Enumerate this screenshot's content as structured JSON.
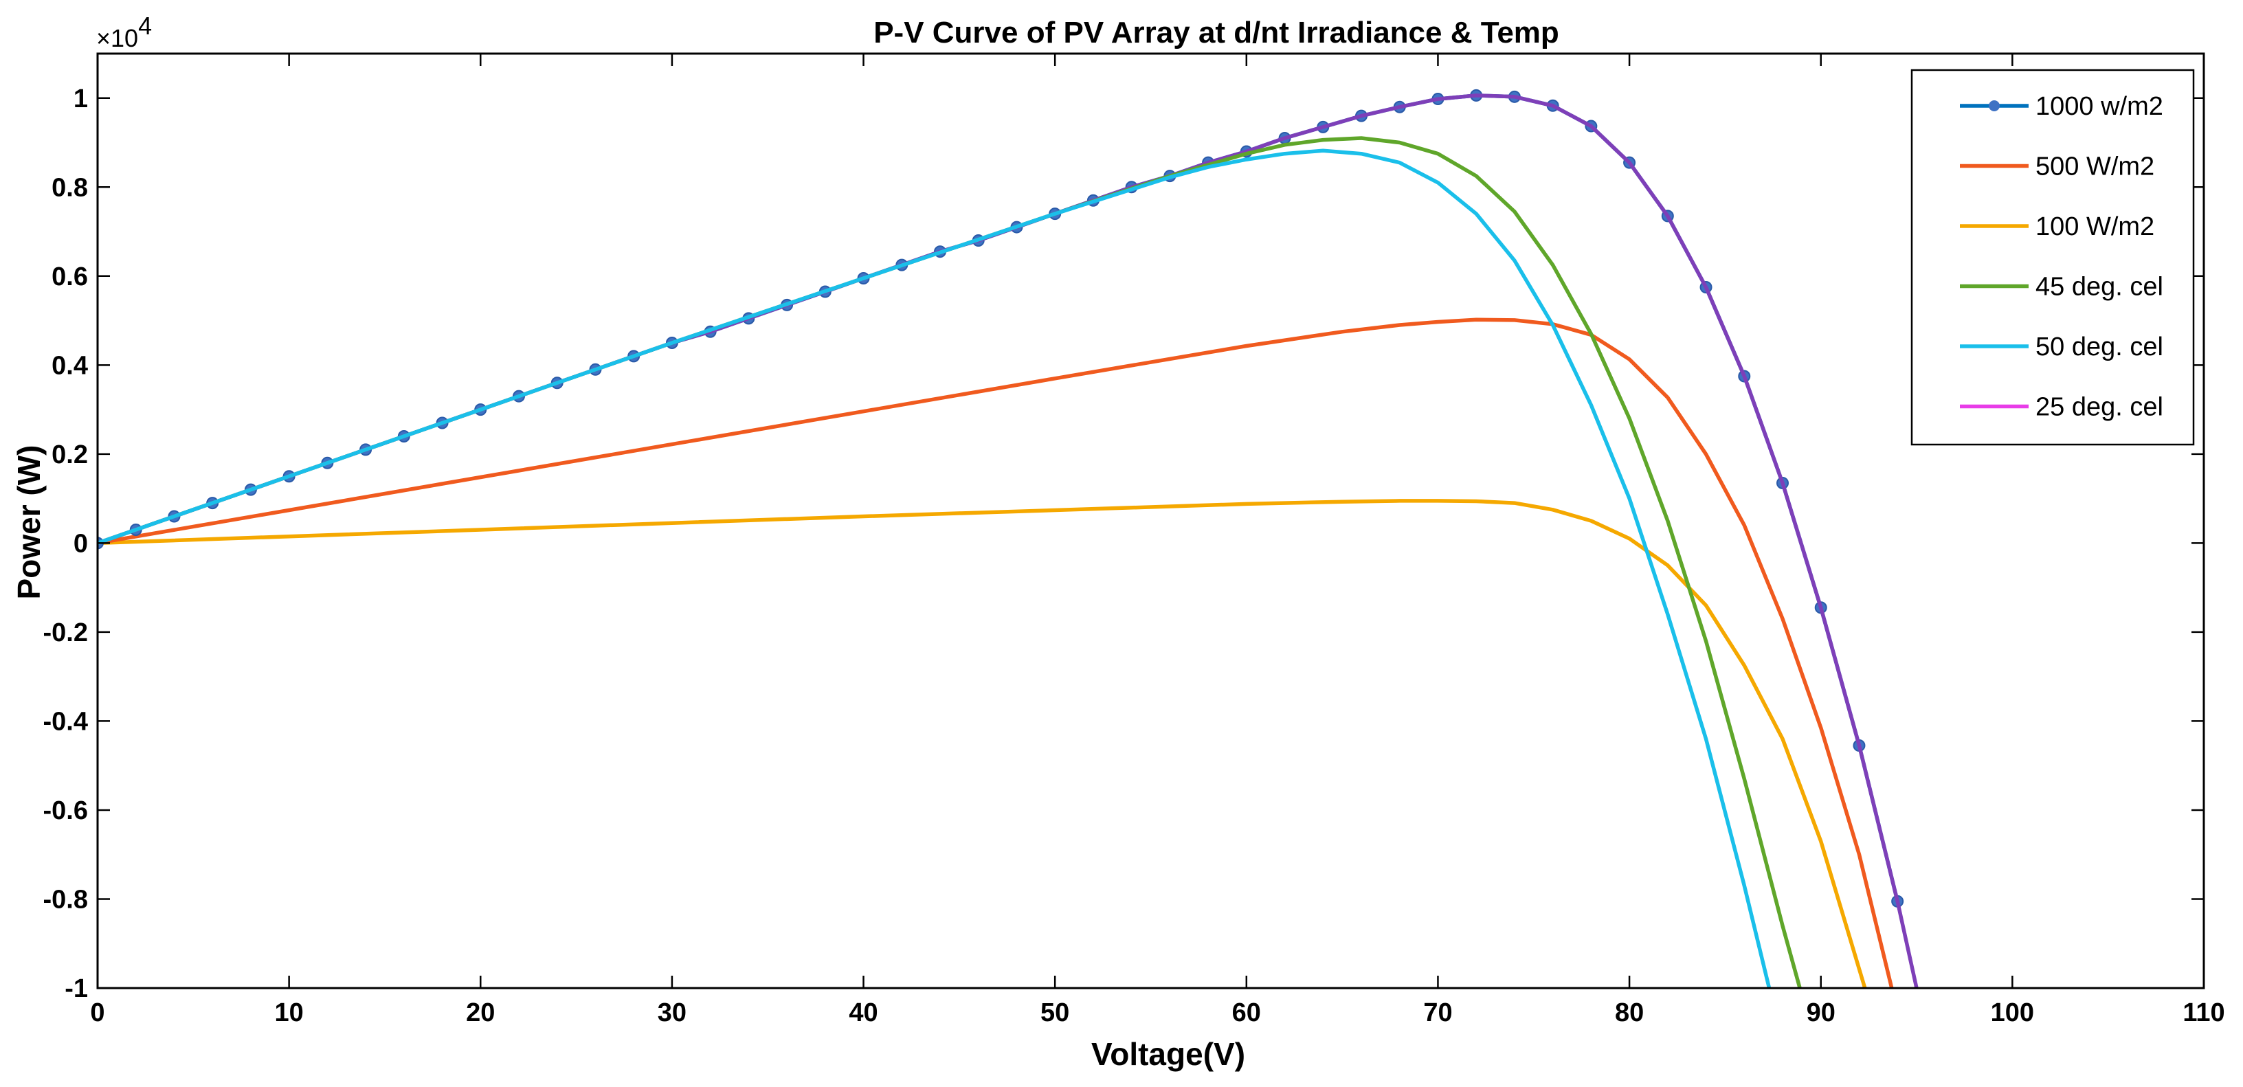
{
  "chart_data": {
    "type": "line",
    "title": "P-V Curve of PV Array at d/nt Irradiance & Temp",
    "xlabel": "Voltage(V)",
    "ylabel": "Power (W)",
    "y_exponent_base": "×10",
    "y_exponent_power": "4",
    "xlim": [
      0,
      110
    ],
    "ylim": [
      -1,
      1.1
    ],
    "x_ticks": [
      0,
      10,
      20,
      30,
      40,
      50,
      60,
      70,
      80,
      90,
      100,
      110
    ],
    "x_tick_labels": [
      "0",
      "10",
      "20",
      "30",
      "40",
      "50",
      "60",
      "70",
      "80",
      "90",
      "100",
      "110"
    ],
    "y_ticks": [
      1,
      0.8,
      0.6,
      0.4,
      0.2,
      0,
      -0.2,
      -0.4,
      -0.6,
      -0.8,
      -1
    ],
    "y_tick_labels": [
      "1",
      "0.8",
      "0.6",
      "0.4",
      "0.2",
      "0",
      "-0.2",
      "-0.4",
      "-0.6",
      "-0.8",
      "-1"
    ],
    "grid": false,
    "legend_position": "top-right",
    "series": [
      {
        "name": "1000 w/m2",
        "color": "#0072BD",
        "marker": "circle",
        "x": [
          0,
          2,
          4,
          6,
          8,
          10,
          12,
          14,
          16,
          18,
          20,
          22,
          24,
          26,
          28,
          30,
          32,
          34,
          36,
          38,
          40,
          42,
          44,
          46,
          48,
          50,
          52,
          54,
          56,
          58,
          60,
          62,
          64,
          66,
          68,
          70,
          72,
          74,
          76,
          78,
          80,
          82,
          84,
          86,
          88,
          90,
          92,
          94
        ],
        "y": [
          0,
          0.03,
          0.06,
          0.09,
          0.12,
          0.15,
          0.18,
          0.21,
          0.24,
          0.27,
          0.3,
          0.33,
          0.36,
          0.39,
          0.42,
          0.45,
          0.475,
          0.505,
          0.535,
          0.565,
          0.595,
          0.625,
          0.655,
          0.68,
          0.71,
          0.74,
          0.77,
          0.8,
          0.825,
          0.855,
          0.88,
          0.91,
          0.935,
          0.96,
          0.98,
          0.998,
          1.006,
          1.003,
          0.983,
          0.937,
          0.855,
          0.735,
          0.575,
          0.375,
          0.135,
          -0.145,
          -0.455,
          -0.805
        ]
      },
      {
        "name": "500 W/m2",
        "color": "#F05A1E",
        "marker": "none",
        "x": [
          0,
          10,
          20,
          30,
          40,
          50,
          60,
          65,
          68,
          70,
          72,
          74,
          76,
          78,
          80,
          82,
          84,
          86,
          88,
          90,
          92,
          93.7
        ],
        "y": [
          0,
          0.074,
          0.148,
          0.222,
          0.296,
          0.37,
          0.443,
          0.475,
          0.49,
          0.497,
          0.502,
          0.501,
          0.492,
          0.468,
          0.413,
          0.327,
          0.2,
          0.04,
          -0.17,
          -0.415,
          -0.7,
          -1.0
        ]
      },
      {
        "name": "100 W/m2",
        "color": "#F5A800",
        "marker": "none",
        "x": [
          0,
          10,
          20,
          30,
          40,
          50,
          60,
          65,
          68,
          70,
          72,
          74,
          76,
          78,
          80,
          82,
          84,
          86,
          88,
          90,
          92.3
        ],
        "y": [
          0,
          0.015,
          0.03,
          0.045,
          0.06,
          0.074,
          0.088,
          0.093,
          0.095,
          0.095,
          0.094,
          0.09,
          0.075,
          0.05,
          0.01,
          -0.05,
          -0.14,
          -0.275,
          -0.44,
          -0.67,
          -1.0
        ]
      },
      {
        "name": "45 deg. cel",
        "color": "#5FA62A",
        "marker": "none",
        "x": [
          0,
          10,
          20,
          30,
          40,
          50,
          56,
          60,
          62,
          64,
          66,
          68,
          70,
          72,
          74,
          76,
          78,
          80,
          82,
          84,
          86,
          88,
          88.9
        ],
        "y": [
          0,
          0.15,
          0.3,
          0.45,
          0.595,
          0.74,
          0.825,
          0.875,
          0.895,
          0.906,
          0.91,
          0.9,
          0.875,
          0.825,
          0.745,
          0.625,
          0.47,
          0.28,
          0.05,
          -0.22,
          -0.53,
          -0.86,
          -1.0
        ]
      },
      {
        "name": "50 deg. cel",
        "color": "#1ABFEA",
        "marker": "none",
        "x": [
          0,
          10,
          20,
          30,
          40,
          50,
          56,
          58,
          60,
          62,
          64,
          66,
          68,
          70,
          72,
          74,
          76,
          78,
          80,
          82,
          84,
          86,
          87.3
        ],
        "y": [
          0,
          0.15,
          0.3,
          0.45,
          0.595,
          0.74,
          0.822,
          0.845,
          0.862,
          0.875,
          0.882,
          0.875,
          0.855,
          0.81,
          0.74,
          0.635,
          0.49,
          0.31,
          0.1,
          -0.16,
          -0.44,
          -0.77,
          -1.0
        ]
      },
      {
        "name": "25 deg. cel",
        "color": "#E83CE8",
        "overlay_color": "#7E3FB8",
        "marker": "none",
        "x": [
          0,
          2,
          4,
          6,
          8,
          10,
          12,
          14,
          16,
          18,
          20,
          22,
          24,
          26,
          28,
          30,
          32,
          34,
          36,
          38,
          40,
          42,
          44,
          46,
          48,
          50,
          52,
          54,
          56,
          58,
          60,
          62,
          64,
          66,
          68,
          70,
          72,
          74,
          76,
          78,
          80,
          82,
          84,
          86,
          88,
          90,
          92,
          94,
          95
        ],
        "y": [
          0,
          0.03,
          0.06,
          0.09,
          0.12,
          0.15,
          0.18,
          0.21,
          0.24,
          0.27,
          0.3,
          0.33,
          0.36,
          0.39,
          0.42,
          0.45,
          0.475,
          0.505,
          0.535,
          0.565,
          0.595,
          0.625,
          0.655,
          0.68,
          0.71,
          0.74,
          0.77,
          0.8,
          0.825,
          0.855,
          0.88,
          0.91,
          0.935,
          0.96,
          0.98,
          0.998,
          1.006,
          1.003,
          0.983,
          0.937,
          0.855,
          0.735,
          0.575,
          0.375,
          0.135,
          -0.145,
          -0.455,
          -0.805,
          -1.0
        ]
      }
    ]
  }
}
